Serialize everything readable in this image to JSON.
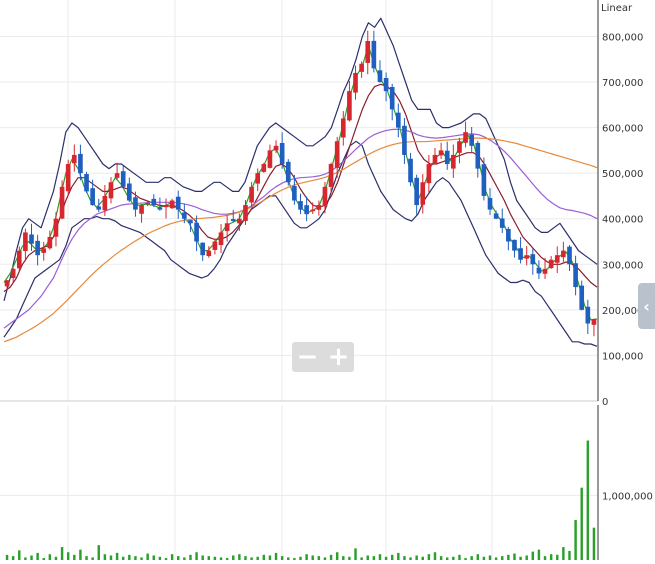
{
  "chart_data": [
    {
      "type": "candlestick",
      "scale_label": "Linear",
      "ylim": [
        0,
        880000
      ],
      "y_ticks": [
        {
          "value": 0,
          "label": "0"
        },
        {
          "value": 100000,
          "label": "100,000"
        },
        {
          "value": 200000,
          "label": "200,000"
        },
        {
          "value": 300000,
          "label": "300,000"
        },
        {
          "value": 400000,
          "label": "400,000"
        },
        {
          "value": 500000,
          "label": "500,000"
        },
        {
          "value": 600000,
          "label": "600,000"
        },
        {
          "value": 700000,
          "label": "700,000"
        },
        {
          "value": 800000,
          "label": "800,000"
        }
      ],
      "grid": true,
      "close_series": [
        265000,
        290000,
        330000,
        370000,
        345000,
        320000,
        335000,
        360000,
        400000,
        470000,
        520000,
        540000,
        500000,
        460000,
        430000,
        420000,
        450000,
        480000,
        500000,
        470000,
        440000,
        420000,
        430000,
        435000,
        430000,
        420000,
        430000,
        440000,
        420000,
        400000,
        390000,
        350000,
        320000,
        330000,
        350000,
        370000,
        390000,
        395000,
        400000,
        430000,
        470000,
        500000,
        520000,
        550000,
        560000,
        520000,
        480000,
        440000,
        420000,
        410000,
        420000,
        430000,
        470000,
        520000,
        570000,
        620000,
        680000,
        720000,
        740000,
        790000,
        730000,
        700000,
        680000,
        640000,
        600000,
        540000,
        480000,
        430000,
        480000,
        520000,
        540000,
        550000,
        520000,
        540000,
        570000,
        590000,
        560000,
        510000,
        450000,
        420000,
        400000,
        380000,
        350000,
        330000,
        310000,
        320000,
        300000,
        280000,
        290000,
        310000,
        320000,
        330000,
        300000,
        250000,
        200000,
        170000,
        180000
      ],
      "overlays": [
        {
          "kind": "bollinger-upper",
          "color": "#2b2f6b",
          "values": [
            220000,
            270000,
            330000,
            380000,
            400000,
            390000,
            380000,
            420000,
            460000,
            520000,
            590000,
            610000,
            600000,
            580000,
            560000,
            540000,
            520000,
            510000,
            520000,
            520000,
            510000,
            500000,
            490000,
            480000,
            480000,
            480000,
            490000,
            490000,
            480000,
            470000,
            465000,
            460000,
            460000,
            470000,
            480000,
            480000,
            470000,
            460000,
            460000,
            480000,
            520000,
            560000,
            580000,
            600000,
            610000,
            600000,
            590000,
            580000,
            570000,
            560000,
            560000,
            570000,
            580000,
            600000,
            640000,
            680000,
            710000,
            750000,
            800000,
            830000,
            820000,
            840000,
            810000,
            780000,
            740000,
            700000,
            660000,
            640000,
            640000,
            640000,
            610000,
            600000,
            600000,
            605000,
            610000,
            620000,
            630000,
            630000,
            620000,
            590000,
            560000,
            530000,
            480000,
            440000,
            420000,
            400000,
            380000,
            370000,
            370000,
            380000,
            390000,
            370000,
            350000,
            330000,
            320000,
            310000,
            300000
          ]
        },
        {
          "kind": "bollinger-lower",
          "color": "#2b2f6b",
          "values": [
            140000,
            160000,
            180000,
            210000,
            240000,
            270000,
            280000,
            290000,
            300000,
            310000,
            340000,
            380000,
            390000,
            400000,
            400000,
            405000,
            400000,
            400000,
            395000,
            385000,
            380000,
            375000,
            370000,
            360000,
            350000,
            340000,
            330000,
            310000,
            300000,
            290000,
            280000,
            275000,
            270000,
            275000,
            290000,
            310000,
            340000,
            360000,
            380000,
            400000,
            420000,
            430000,
            440000,
            450000,
            450000,
            430000,
            410000,
            390000,
            380000,
            380000,
            390000,
            400000,
            420000,
            460000,
            500000,
            530000,
            560000,
            570000,
            560000,
            520000,
            490000,
            460000,
            440000,
            420000,
            410000,
            400000,
            395000,
            410000,
            440000,
            460000,
            480000,
            490000,
            480000,
            460000,
            440000,
            410000,
            380000,
            350000,
            320000,
            300000,
            280000,
            270000,
            260000,
            260000,
            265000,
            260000,
            240000,
            230000,
            210000,
            190000,
            170000,
            150000,
            130000,
            130000,
            125000,
            125000,
            120000
          ]
        },
        {
          "kind": "ma-short",
          "color": "#2ca02c",
          "values": [
            260000,
            280000,
            310000,
            340000,
            350000,
            335000,
            330000,
            345000,
            380000,
            440000,
            500000,
            530000,
            510000,
            470000,
            440000,
            425000,
            440000,
            465000,
            490000,
            475000,
            450000,
            430000,
            430000,
            432000,
            430000,
            425000,
            428000,
            435000,
            425000,
            405000,
            390000,
            360000,
            330000,
            330000,
            345000,
            365000,
            385000,
            392000,
            398000,
            425000,
            462000,
            495000,
            515000,
            545000,
            555000,
            525000,
            485000,
            448000,
            425000,
            413000,
            418000,
            428000,
            462000,
            510000,
            560000,
            612000,
            670000,
            712000,
            735000,
            780000,
            735000,
            705000,
            683000,
            645000,
            605000,
            548000,
            490000,
            440000,
            472000,
            512000,
            535000,
            546000,
            525000,
            537000,
            563000,
            585000,
            565000,
            518000,
            460000,
            428000,
            405000,
            385000,
            355000,
            335000,
            315000,
            318000,
            303000,
            285000,
            290000,
            306000,
            318000,
            327000,
            305000,
            258000,
            210000,
            178000,
            180000
          ]
        },
        {
          "kind": "ma-mid",
          "color": "#8b1e2b",
          "values": [
            240000,
            250000,
            270000,
            300000,
            320000,
            330000,
            335000,
            340000,
            360000,
            400000,
            440000,
            470000,
            490000,
            490000,
            480000,
            470000,
            460000,
            460000,
            465000,
            470000,
            465000,
            455000,
            445000,
            440000,
            435000,
            430000,
            428000,
            428000,
            425000,
            418000,
            408000,
            395000,
            375000,
            360000,
            355000,
            355000,
            360000,
            370000,
            385000,
            400000,
            420000,
            445000,
            470000,
            495000,
            515000,
            520000,
            510000,
            490000,
            465000,
            445000,
            430000,
            425000,
            430000,
            450000,
            480000,
            520000,
            560000,
            600000,
            640000,
            670000,
            690000,
            695000,
            690000,
            680000,
            660000,
            630000,
            590000,
            550000,
            530000,
            520000,
            520000,
            525000,
            530000,
            535000,
            540000,
            545000,
            545000,
            535000,
            515000,
            490000,
            465000,
            440000,
            410000,
            385000,
            360000,
            345000,
            330000,
            315000,
            305000,
            300000,
            300000,
            305000,
            300000,
            290000,
            275000,
            260000,
            250000
          ]
        },
        {
          "kind": "ma-long",
          "color": "#9b5fd6",
          "values": [
            160000,
            170000,
            180000,
            190000,
            200000,
            215000,
            230000,
            250000,
            270000,
            300000,
            330000,
            355000,
            375000,
            390000,
            400000,
            410000,
            415000,
            420000,
            425000,
            430000,
            432000,
            433000,
            434000,
            435000,
            436000,
            436000,
            436000,
            436000,
            435000,
            433000,
            430000,
            426000,
            420000,
            416000,
            412000,
            410000,
            410000,
            412000,
            415000,
            420000,
            428000,
            438000,
            448000,
            460000,
            470000,
            478000,
            484000,
            488000,
            490000,
            491000,
            492000,
            494000,
            498000,
            505000,
            515000,
            527000,
            540000,
            553000,
            565000,
            577000,
            585000,
            590000,
            594000,
            596000,
            596000,
            594000,
            590000,
            584000,
            580000,
            578000,
            577000,
            578000,
            580000,
            582000,
            584000,
            586000,
            586000,
            584000,
            578000,
            570000,
            560000,
            548000,
            534000,
            518000,
            502000,
            486000,
            470000,
            455000,
            442000,
            432000,
            424000,
            420000,
            418000,
            415000,
            412000,
            407000,
            400000
          ]
        },
        {
          "kind": "ma-longest",
          "color": "#e8893a",
          "values": [
            130000,
            135000,
            140000,
            148000,
            155000,
            163000,
            172000,
            182000,
            192000,
            205000,
            218000,
            232000,
            246000,
            260000,
            274000,
            287000,
            299000,
            310000,
            321000,
            331000,
            340000,
            349000,
            357000,
            365000,
            372000,
            378000,
            384000,
            389000,
            393000,
            396000,
            398000,
            400000,
            401000,
            402000,
            403000,
            405000,
            407000,
            410000,
            414000,
            419000,
            425000,
            432000,
            440000,
            448000,
            456000,
            463000,
            469000,
            474000,
            478000,
            481000,
            484000,
            487000,
            491000,
            496000,
            502000,
            509000,
            517000,
            525000,
            533000,
            541000,
            548000,
            554000,
            559000,
            563000,
            566000,
            568000,
            569000,
            569000,
            569000,
            570000,
            571000,
            572000,
            573000,
            574000,
            575000,
            576000,
            577000,
            577000,
            576000,
            575000,
            573000,
            571000,
            568000,
            565000,
            561000,
            557000,
            553000,
            549000,
            545000,
            541000,
            537000,
            533000,
            529000,
            525000,
            521000,
            517000,
            512000
          ]
        }
      ],
      "colors": {
        "up": "#d8262e",
        "down": "#1f5fbf",
        "volume": "#2ca02c"
      }
    },
    {
      "type": "bar",
      "series": [
        {
          "values": [
            80000,
            60000,
            150000,
            40000,
            70000,
            110000,
            30000,
            90000,
            50000,
            200000,
            120000,
            80000,
            160000,
            60000,
            40000,
            230000,
            90000,
            70000,
            110000,
            50000,
            80000,
            60000,
            40000,
            100000,
            70000,
            50000,
            30000,
            90000,
            60000,
            40000,
            80000,
            120000,
            70000,
            60000,
            50000,
            40000,
            30000,
            70000,
            90000,
            60000,
            40000,
            50000,
            80000,
            70000,
            110000,
            60000,
            40000,
            30000,
            50000,
            90000,
            70000,
            60000,
            40000,
            80000,
            120000,
            60000,
            50000,
            180000,
            40000,
            70000,
            60000,
            90000,
            50000,
            80000,
            110000,
            60000,
            40000,
            70000,
            50000,
            90000,
            120000,
            60000,
            40000,
            50000,
            80000,
            30000,
            60000,
            90000,
            50000,
            70000,
            40000,
            60000,
            80000,
            100000,
            50000,
            70000,
            130000,
            160000,
            60000,
            90000,
            80000,
            200000,
            140000,
            620000,
            1120000,
            1850000,
            500000
          ]
        }
      ],
      "ylim": [
        0,
        2400000
      ],
      "y_ticks": [
        {
          "value": 1000000,
          "label": "1,000,000"
        }
      ],
      "grid": true
    }
  ],
  "controls": {
    "zoom_out_label": "−",
    "zoom_in_label": "+",
    "side_tab_label": "‹"
  }
}
